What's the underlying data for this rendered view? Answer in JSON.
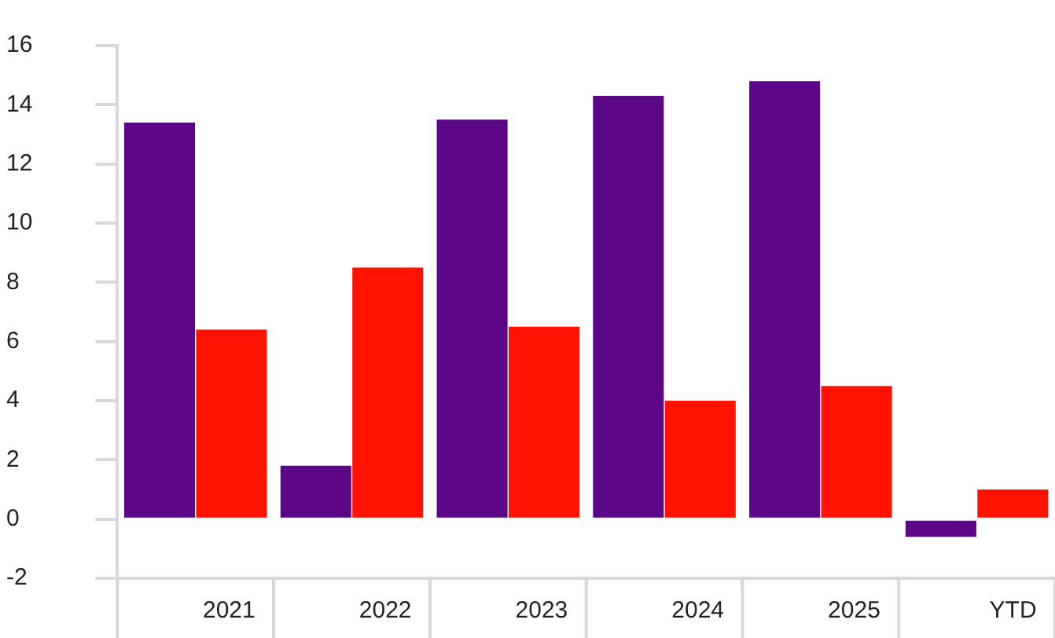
{
  "chart_data": {
    "type": "bar",
    "categories": [
      "2021",
      "2022",
      "2023",
      "2024",
      "2025",
      "YTD"
    ],
    "series": [
      {
        "color": "#5b0788",
        "values": [
          13.4,
          1.8,
          13.5,
          14.3,
          14.8,
          -0.6
        ]
      },
      {
        "color": "#ff1200",
        "values": [
          6.4,
          8.5,
          6.5,
          4.0,
          4.5,
          1.0
        ]
      }
    ],
    "ylim": [
      -2,
      16
    ],
    "yticks": [
      -2,
      0,
      2,
      4,
      6,
      8,
      10,
      12,
      14,
      16
    ],
    "grid": false,
    "legend": false
  }
}
